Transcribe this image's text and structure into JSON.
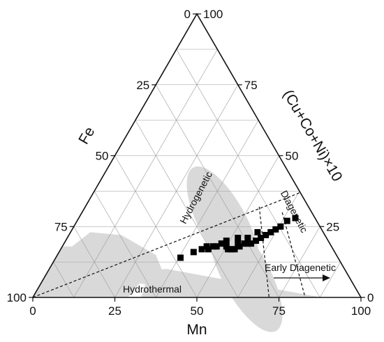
{
  "chart_data": {
    "type": "scatter",
    "subtype": "ternary",
    "axes": {
      "bottom": {
        "label": "Mn",
        "ticks": [
          "0",
          "25",
          "50",
          "75",
          "100"
        ]
      },
      "left": {
        "label": "Fe",
        "ticks": [
          "100",
          "75",
          "50",
          "25",
          "0"
        ]
      },
      "right": {
        "label": "(Cu+Co+Ni)×10",
        "ticks": [
          "0",
          "25",
          "50",
          "75",
          "100"
        ]
      }
    },
    "grid": true,
    "tick_step": 12.5,
    "regions": [
      {
        "name": "Hydrogenetic",
        "fill": "#d9d9d9"
      },
      {
        "name": "Hydrothermal",
        "fill": "#d9d9d9"
      },
      {
        "name": "Diagenetic",
        "fill": "none"
      },
      {
        "name": "Early Diagenetic",
        "fill": "none"
      }
    ],
    "series": [
      {
        "marker": "square",
        "color": "#000000",
        "points": [
          {
            "mn": 66,
            "fe": 6,
            "cuconi": 28
          },
          {
            "mn": 64,
            "fe": 9,
            "cuconi": 27
          },
          {
            "mn": 63,
            "fe": 12,
            "cuconi": 25
          },
          {
            "mn": 62,
            "fe": 14,
            "cuconi": 24
          },
          {
            "mn": 61,
            "fe": 16,
            "cuconi": 23
          },
          {
            "mn": 60,
            "fe": 18,
            "cuconi": 22
          },
          {
            "mn": 59,
            "fe": 20,
            "cuconi": 21
          },
          {
            "mn": 58,
            "fe": 22,
            "cuconi": 20
          },
          {
            "mn": 57,
            "fe": 24,
            "cuconi": 19
          },
          {
            "mn": 56,
            "fe": 25,
            "cuconi": 19
          },
          {
            "mn": 55,
            "fe": 26,
            "cuconi": 19
          },
          {
            "mn": 54,
            "fe": 28,
            "cuconi": 18
          },
          {
            "mn": 53,
            "fe": 30,
            "cuconi": 17
          },
          {
            "mn": 52,
            "fe": 31,
            "cuconi": 17
          },
          {
            "mn": 51,
            "fe": 32,
            "cuconi": 17
          },
          {
            "mn": 53,
            "fe": 28,
            "cuconi": 19
          },
          {
            "mn": 55,
            "fe": 24,
            "cuconi": 21
          },
          {
            "mn": 57,
            "fe": 20,
            "cuconi": 23
          },
          {
            "mn": 52,
            "fe": 27,
            "cuconi": 21
          },
          {
            "mn": 49,
            "fe": 31,
            "cuconi": 20
          },
          {
            "mn": 48,
            "fe": 33,
            "cuconi": 19
          },
          {
            "mn": 46,
            "fe": 36,
            "cuconi": 18
          },
          {
            "mn": 44,
            "fe": 38,
            "cuconi": 18
          },
          {
            "mn": 43,
            "fe": 40,
            "cuconi": 17
          },
          {
            "mn": 45,
            "fe": 38,
            "cuconi": 17
          },
          {
            "mn": 47,
            "fe": 35,
            "cuconi": 18
          },
          {
            "mn": 50,
            "fe": 32,
            "cuconi": 18
          },
          {
            "mn": 41,
            "fe": 43,
            "cuconi": 16
          },
          {
            "mn": 38,
            "fe": 48,
            "cuconi": 14
          }
        ]
      }
    ]
  }
}
